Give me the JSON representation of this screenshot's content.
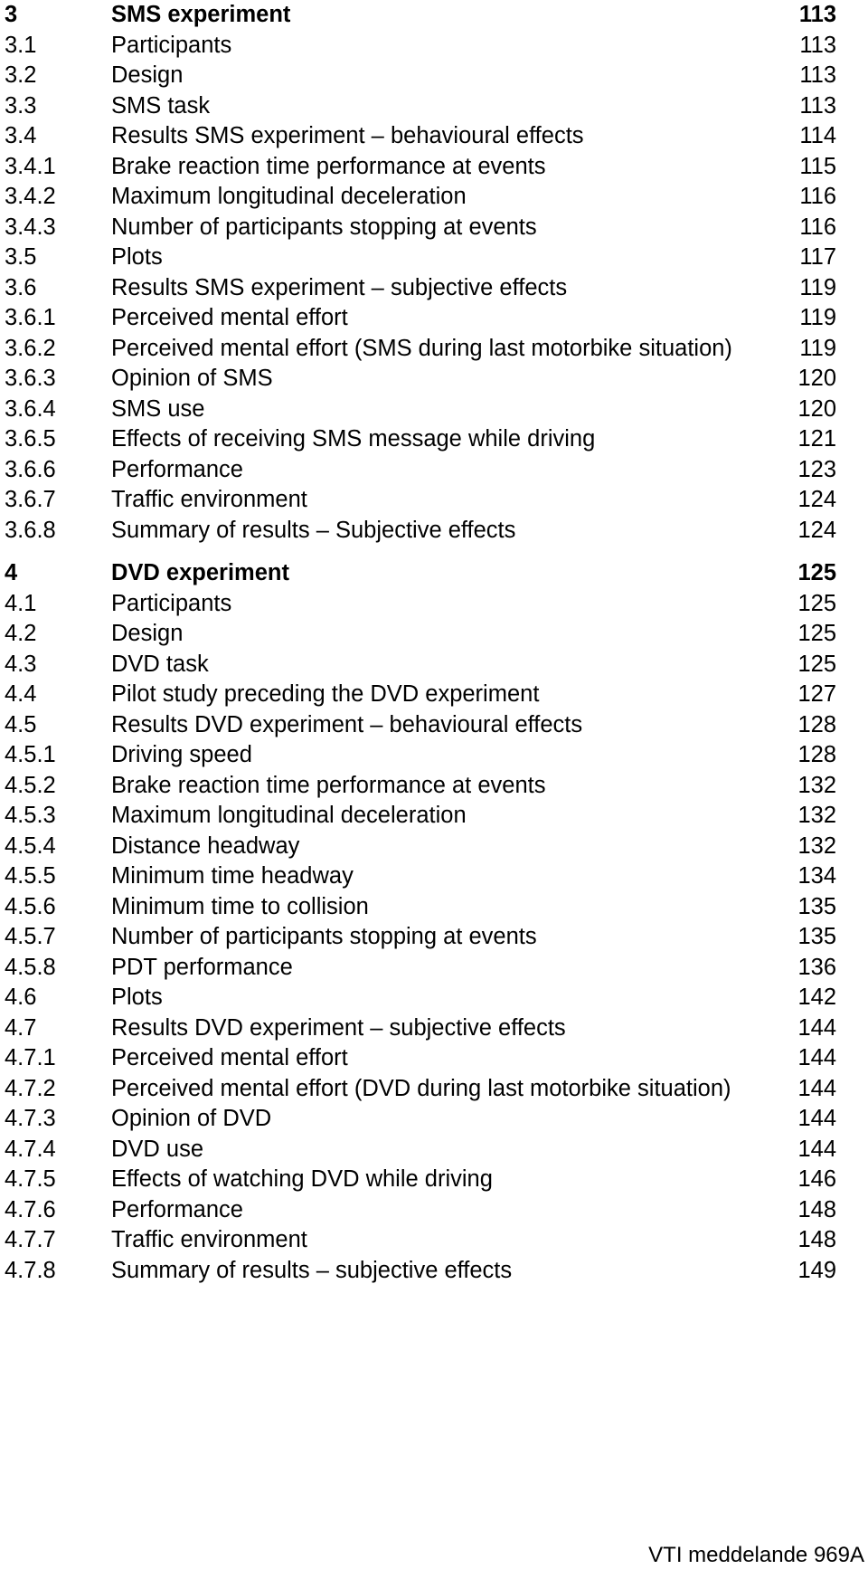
{
  "toc": {
    "sections": [
      {
        "chapter": {
          "num": "3",
          "title": "SMS experiment",
          "page": "113"
        },
        "items": [
          {
            "num": "3.1",
            "title": "Participants",
            "page": "113"
          },
          {
            "num": "3.2",
            "title": "Design",
            "page": "113"
          },
          {
            "num": "3.3",
            "title": "SMS task",
            "page": "113"
          },
          {
            "num": "3.4",
            "title": "Results SMS experiment – behavioural effects",
            "page": "114"
          },
          {
            "num": "3.4.1",
            "title": "Brake reaction time performance at events",
            "page": "115"
          },
          {
            "num": "3.4.2",
            "title": "Maximum longitudinal deceleration",
            "page": "116"
          },
          {
            "num": "3.4.3",
            "title": "Number of participants stopping at events",
            "page": "116"
          },
          {
            "num": "3.5",
            "title": "Plots",
            "page": "117"
          },
          {
            "num": "3.6",
            "title": "Results SMS experiment – subjective effects",
            "page": "119"
          },
          {
            "num": "3.6.1",
            "title": "Perceived mental effort",
            "page": "119"
          },
          {
            "num": "3.6.2",
            "title": "Perceived mental effort (SMS during last motorbike situation)",
            "page": "119"
          },
          {
            "num": "3.6.3",
            "title": "Opinion of SMS",
            "page": "120"
          },
          {
            "num": "3.6.4",
            "title": "SMS use",
            "page": "120"
          },
          {
            "num": "3.6.5",
            "title": "Effects of receiving SMS message while driving",
            "page": "121"
          },
          {
            "num": "3.6.6",
            "title": "Performance",
            "page": "123"
          },
          {
            "num": "3.6.7",
            "title": "Traffic environment",
            "page": "124"
          },
          {
            "num": "3.6.8",
            "title": "Summary of results – Subjective effects",
            "page": "124"
          }
        ]
      },
      {
        "chapter": {
          "num": "4",
          "title": "DVD experiment",
          "page": "125"
        },
        "items": [
          {
            "num": "4.1",
            "title": "Participants",
            "page": "125"
          },
          {
            "num": "4.2",
            "title": "Design",
            "page": "125"
          },
          {
            "num": "4.3",
            "title": "DVD task",
            "page": "125"
          },
          {
            "num": "4.4",
            "title": "Pilot study preceding the DVD experiment",
            "page": "127"
          },
          {
            "num": "4.5",
            "title": "Results DVD experiment – behavioural effects",
            "page": "128"
          },
          {
            "num": "4.5.1",
            "title": "Driving speed",
            "page": "128"
          },
          {
            "num": "4.5.2",
            "title": "Brake reaction time performance at events",
            "page": "132"
          },
          {
            "num": "4.5.3",
            "title": "Maximum longitudinal deceleration",
            "page": "132"
          },
          {
            "num": "4.5.4",
            "title": "Distance headway",
            "page": "132"
          },
          {
            "num": "4.5.5",
            "title": "Minimum time headway",
            "page": "134"
          },
          {
            "num": "4.5.6",
            "title": "Minimum time to collision",
            "page": "135"
          },
          {
            "num": "4.5.7",
            "title": "Number of participants stopping at events",
            "page": "135"
          },
          {
            "num": "4.5.8",
            "title": "PDT performance",
            "page": "136"
          },
          {
            "num": "4.6",
            "title": "Plots",
            "page": "142"
          },
          {
            "num": "4.7",
            "title": "Results DVD experiment – subjective effects",
            "page": "144"
          },
          {
            "num": "4.7.1",
            "title": "Perceived mental effort",
            "page": "144"
          },
          {
            "num": "4.7.2",
            "title": "Perceived mental effort (DVD during last motorbike situation)",
            "page": "144"
          },
          {
            "num": "4.7.3",
            "title": "Opinion of DVD",
            "page": "144"
          },
          {
            "num": "4.7.4",
            "title": "DVD use",
            "page": "144"
          },
          {
            "num": "4.7.5",
            "title": "Effects of watching DVD while driving",
            "page": "146"
          },
          {
            "num": "4.7.6",
            "title": "Performance",
            "page": "148"
          },
          {
            "num": "4.7.7",
            "title": "Traffic environment",
            "page": "148"
          },
          {
            "num": "4.7.8",
            "title": "Summary of results – subjective effects",
            "page": "149"
          }
        ]
      }
    ]
  },
  "footer": {
    "text": "VTI meddelande 969A"
  }
}
